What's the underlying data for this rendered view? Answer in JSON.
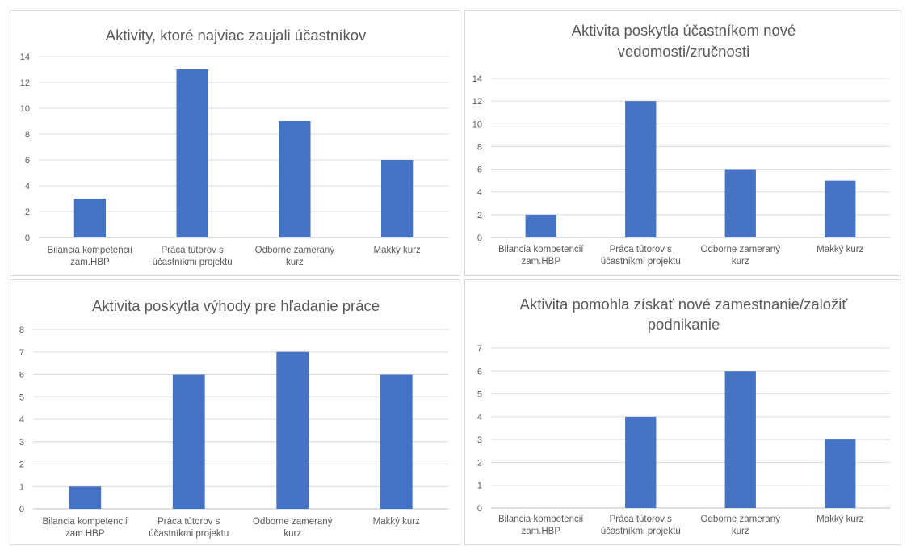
{
  "colors": {
    "bar": "#4472c4"
  },
  "chart_data": [
    {
      "type": "bar",
      "title": "Aktivity, ktoré najviac zaujali účastníkov",
      "categories": [
        "Bilancia kompetencií zam.HBP",
        "Práca tútorov s účastníkmi projektu",
        "Odborne zameraný kurz",
        "Makký kurz"
      ],
      "values": [
        3,
        13,
        9,
        6
      ],
      "ylim": [
        0,
        14
      ],
      "yticks": [
        "0",
        "2",
        "4",
        "6",
        "8",
        "10",
        "12",
        "14"
      ],
      "grid": true,
      "legend": "none"
    },
    {
      "type": "bar",
      "title": "Aktivita poskytla účastníkom nové vedomosti/zručnosti",
      "categories": [
        "Bilancia kompetencií zam.HBP",
        "Práca tútorov s účastníkmi projektu",
        "Odborne zameraný kurz",
        "Makký kurz"
      ],
      "values": [
        2,
        12,
        6,
        5
      ],
      "ylim": [
        0,
        14
      ],
      "yticks": [
        "0",
        "2",
        "4",
        "6",
        "8",
        "10",
        "12",
        "14"
      ],
      "grid": true,
      "legend": "none"
    },
    {
      "type": "bar",
      "title": "Aktivita poskytla výhody pre hľadanie práce",
      "categories": [
        "Bilancia kompetencií zam.HBP",
        "Práca tútorov s účastníkmi projektu",
        "Odborne zameraný kurz",
        "Makký kurz"
      ],
      "values": [
        1,
        6,
        7,
        6
      ],
      "ylim": [
        0,
        8
      ],
      "yticks": [
        "0",
        "1",
        "2",
        "3",
        "4",
        "5",
        "6",
        "7",
        "8"
      ],
      "grid": true,
      "legend": "none"
    },
    {
      "type": "bar",
      "title": "Aktivita pomohla získať nové zamestnanie/založiť podnikanie",
      "categories": [
        "Bilancia kompetencií zam.HBP",
        "Práca tútorov s účastníkmi projektu",
        "Odborne zameraný kurz",
        "Makký kurz"
      ],
      "values": [
        0,
        4,
        6,
        3
      ],
      "ylim": [
        0,
        7
      ],
      "yticks": [
        "0",
        "1",
        "2",
        "3",
        "4",
        "5",
        "6",
        "7"
      ],
      "grid": true,
      "legend": "none"
    }
  ]
}
